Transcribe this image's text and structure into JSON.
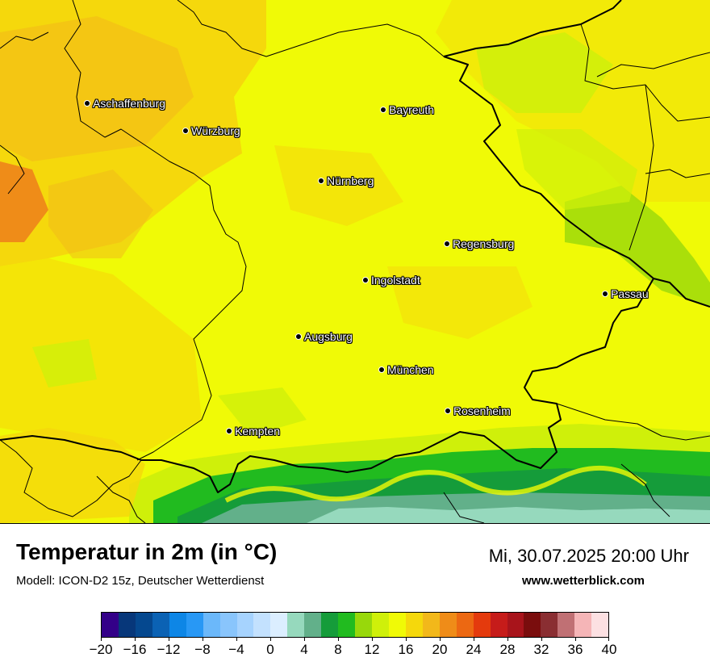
{
  "map": {
    "title": "Temperatur in 2m (in °C)",
    "model": "Modell: ICON-D2 15z, Deutscher Wetterdienst",
    "datetime": "Mi, 30.07.2025 20:00 Uhr",
    "website": "www.wetterblick.com",
    "cities": [
      {
        "id": "aschaffenburg",
        "name": "Aschaffenburg"
      },
      {
        "id": "wuerzburg",
        "name": "Würzburg"
      },
      {
        "id": "bayreuth",
        "name": "Bayreuth"
      },
      {
        "id": "nuernberg",
        "name": "Nürnberg"
      },
      {
        "id": "regensburg",
        "name": "Regensburg"
      },
      {
        "id": "ingolstadt",
        "name": "Ingolstadt"
      },
      {
        "id": "passau",
        "name": "Passau"
      },
      {
        "id": "augsburg",
        "name": "Augsburg"
      },
      {
        "id": "muenchen",
        "name": "München"
      },
      {
        "id": "rosenheim",
        "name": "Rosenheim"
      },
      {
        "id": "kempten",
        "name": "Kempten"
      }
    ]
  },
  "colorbar": {
    "min": -20,
    "max": 40,
    "step": 2,
    "tick_labels": [
      "−20",
      "−16",
      "−12",
      "−8",
      "−4",
      "0",
      "4",
      "8",
      "12",
      "16",
      "20",
      "24",
      "28",
      "32",
      "36",
      "40"
    ],
    "colors": [
      "#330088",
      "#07377a",
      "#05488f",
      "#0b62b4",
      "#0d86e6",
      "#2898f5",
      "#6bb8fa",
      "#89c5fc",
      "#a6d3fe",
      "#c3e1fe",
      "#dbeeff",
      "#96d9bd",
      "#62b08a",
      "#159c3a",
      "#21bb1f",
      "#98d80b",
      "#cff00a",
      "#f0fa06",
      "#f5d80c",
      "#f2b81a",
      "#ef8c18",
      "#ec6812",
      "#e43a0d",
      "#c61c1a",
      "#a8141b",
      "#7a0d0d",
      "#8a2e32",
      "#c07074",
      "#f5b5b7",
      "#fce0e2"
    ]
  }
}
